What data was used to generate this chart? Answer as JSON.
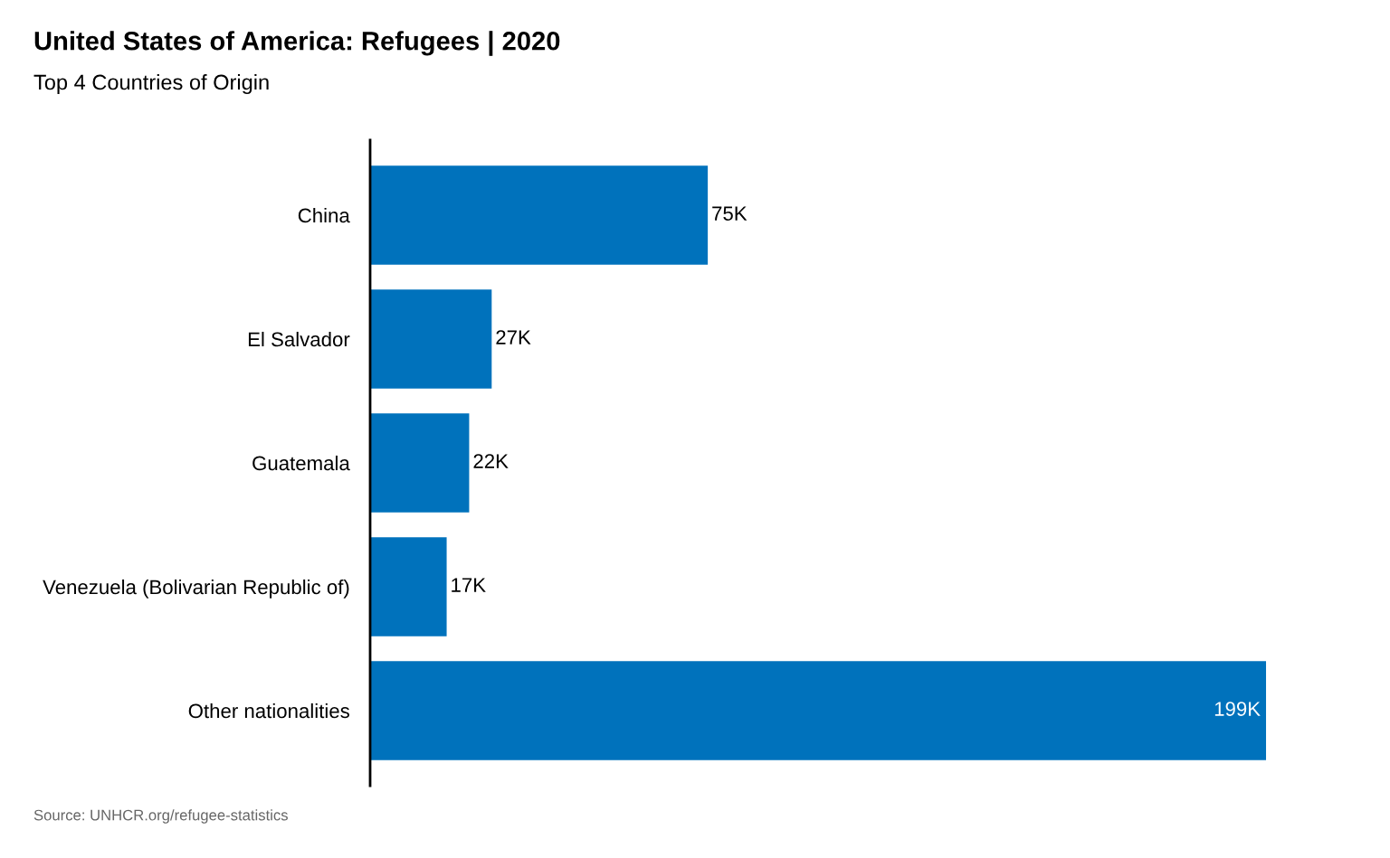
{
  "chart_data": {
    "type": "bar",
    "orientation": "horizontal",
    "title": "United States of America: Refugees | 2020",
    "subtitle": "Top 4 Countries of Origin",
    "categories": [
      "China",
      "El Salvador",
      "Guatemala",
      "Venezuela (Bolivarian Republic of)",
      "Other nationalities"
    ],
    "values": [
      75000,
      27000,
      22000,
      17000,
      199000
    ],
    "value_labels": [
      "75K",
      "27K",
      "22K",
      "17K",
      "199K"
    ],
    "color": "#0072bc",
    "grid": false,
    "legend": false,
    "annotations": [
      "Source: UNHCR.org/refugee-statistics"
    ]
  }
}
